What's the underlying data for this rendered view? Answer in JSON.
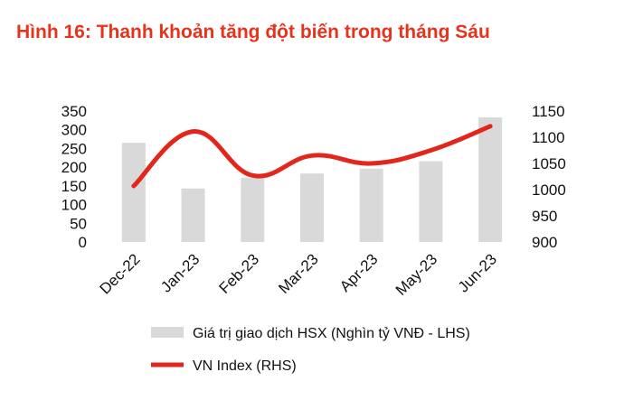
{
  "title": "Hình 16: Thanh khoản tăng đột biến trong tháng Sáu",
  "colors": {
    "title": "#e8331c",
    "bar": "#d9d9d9",
    "line": "#e3261c",
    "text": "#111111"
  },
  "chart_data": {
    "type": "bar+line",
    "categories": [
      "Dec-22",
      "Jan-23",
      "Feb-23",
      "Mar-23",
      "Apr-23",
      "May-23",
      "Jun-23"
    ],
    "series": [
      {
        "name": "Giá trị giao dịch HSX (Nghìn tỷ VNĐ - LHS)",
        "type": "bar",
        "axis": "left",
        "values": [
          265,
          143,
          172,
          183,
          196,
          216,
          333
        ]
      },
      {
        "name": "VN Index (RHS)",
        "type": "line",
        "axis": "right",
        "values": [
          1007,
          1111,
          1027,
          1065,
          1050,
          1075,
          1121
        ]
      }
    ],
    "y_left": {
      "min": 0,
      "max": 350,
      "step": 50,
      "ticks": [
        "0",
        "50",
        "100",
        "150",
        "200",
        "250",
        "300",
        "350"
      ]
    },
    "y_right": {
      "min": 900,
      "max": 1150,
      "step": 50,
      "ticks": [
        "900",
        "950",
        "1000",
        "1050",
        "1100",
        "1150"
      ]
    },
    "grid": false,
    "legend_position": "bottom"
  }
}
